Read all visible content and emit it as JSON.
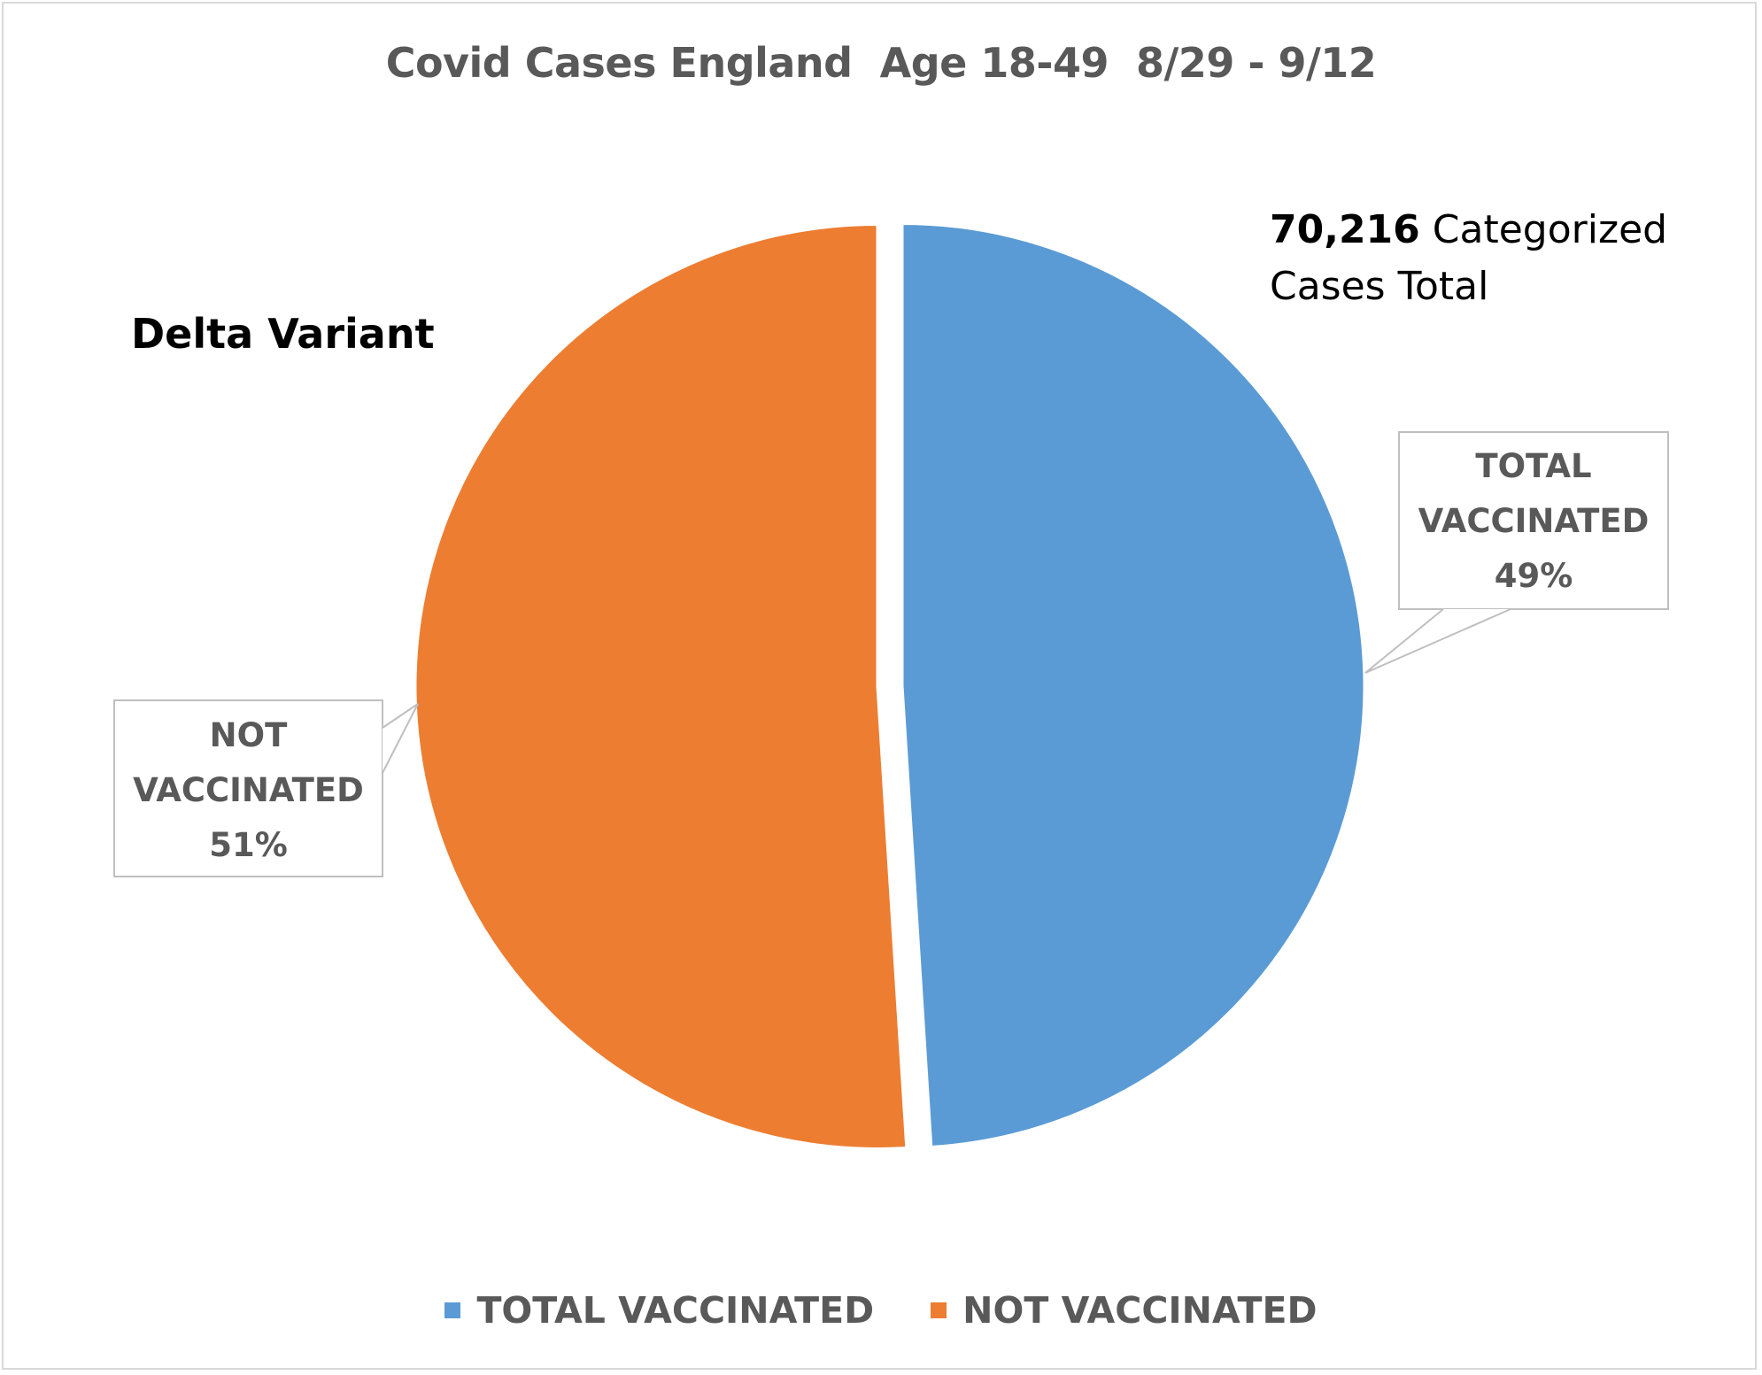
{
  "chart_data": {
    "type": "pie",
    "title": "Covid Cases England  Age 18-49  8/29 - 9/12",
    "subtitle": "Delta Variant",
    "total_count": "70,216",
    "total_suffix": "Categorized",
    "total_suffix2": "Cases Total",
    "slices": [
      {
        "label": "TOTAL VACCINATED",
        "line1": "TOTAL",
        "line2": "VACCINATED",
        "percent": 49,
        "percent_label": "49%",
        "color": "#5b9bd5"
      },
      {
        "label": "NOT VACCINATED",
        "line1": "NOT",
        "line2": "VACCINATED",
        "percent": 51,
        "percent_label": "51%",
        "color": "#ed7d31"
      }
    ],
    "legend": [
      "TOTAL VACCINATED",
      "NOT VACCINATED"
    ],
    "legend_position": "bottom"
  }
}
